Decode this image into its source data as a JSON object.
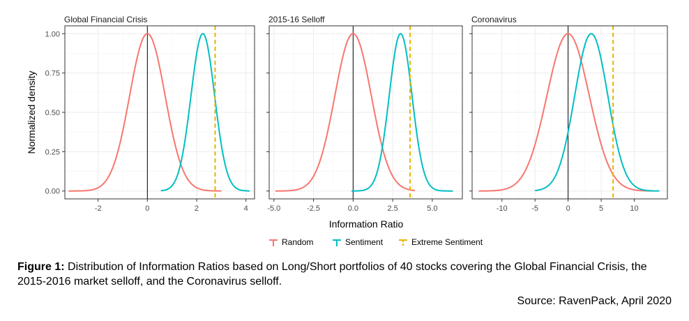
{
  "chart_data": {
    "type": "line",
    "ylabel": "Normalized density",
    "xlabel": "Information Ratio",
    "y_ticks": [
      "0.00",
      "0.25",
      "0.50",
      "0.75",
      "1.00"
    ],
    "ylim": [
      0,
      1
    ],
    "grid": true,
    "legend_position": "bottom",
    "series_names": [
      "Random",
      "Sentiment",
      "Extreme Sentiment"
    ],
    "colors": {
      "Random": "#F8766D",
      "Sentiment": "#00BFC4",
      "Extreme Sentiment": "#E6B400"
    },
    "panels": [
      {
        "title": "Global Financial Crisis",
        "xlim": [
          -3.35,
          4.35
        ],
        "x_ticks": [
          -2,
          0,
          2,
          4
        ],
        "x_tick_labels": [
          "-2",
          "0",
          "2",
          "4"
        ],
        "zero_line": 0,
        "series": [
          {
            "name": "Random",
            "type": "normal_density",
            "mean": 0.0,
            "sd": 0.72,
            "x_range": [
              -3.2,
              3.0
            ]
          },
          {
            "name": "Sentiment",
            "type": "normal_density",
            "mean": 2.25,
            "sd": 0.48,
            "x_range": [
              0.55,
              4.15
            ]
          },
          {
            "name": "Extreme Sentiment",
            "type": "vline",
            "x": 2.75
          }
        ]
      },
      {
        "title": "2015-16 Selloff",
        "xlim": [
          -5.3,
          6.9
        ],
        "x_ticks": [
          -5,
          -2.5,
          0,
          2.5,
          5
        ],
        "x_tick_labels": [
          "-5.0",
          "-2.5",
          "0.0",
          "2.5",
          "5.0"
        ],
        "zero_line": 0,
        "series": [
          {
            "name": "Random",
            "type": "normal_density",
            "mean": 0.0,
            "sd": 1.15,
            "x_range": [
              -4.9,
              3.9
            ]
          },
          {
            "name": "Sentiment",
            "type": "normal_density",
            "mean": 3.0,
            "sd": 0.72,
            "x_range": [
              -0.1,
              6.3
            ]
          },
          {
            "name": "Extreme Sentiment",
            "type": "vline",
            "x": 3.6
          }
        ]
      },
      {
        "title": "Coronavirus",
        "xlim": [
          -14.5,
          15.0
        ],
        "x_ticks": [
          -10,
          -5,
          0,
          5,
          10
        ],
        "x_tick_labels": [
          "-10",
          "-5",
          "0",
          "5",
          "10"
        ],
        "zero_line": 0,
        "series": [
          {
            "name": "Random",
            "type": "normal_density",
            "mean": 0.0,
            "sd": 3.2,
            "x_range": [
              -13.5,
              13.0
            ]
          },
          {
            "name": "Sentiment",
            "type": "normal_density",
            "mean": 3.5,
            "sd": 2.5,
            "x_range": [
              -5.0,
              13.8
            ]
          },
          {
            "name": "Extreme Sentiment",
            "type": "vline",
            "x": 6.8
          }
        ]
      }
    ]
  },
  "caption": {
    "label": "Figure 1:",
    "text": " Distribution of Information Ratios based on Long/Short portfolios of 40 stocks covering the Global Financial Crisis, the 2015-2016 market selloff, and the Coronavirus selloff."
  },
  "source": "Source: RavenPack, April 2020"
}
